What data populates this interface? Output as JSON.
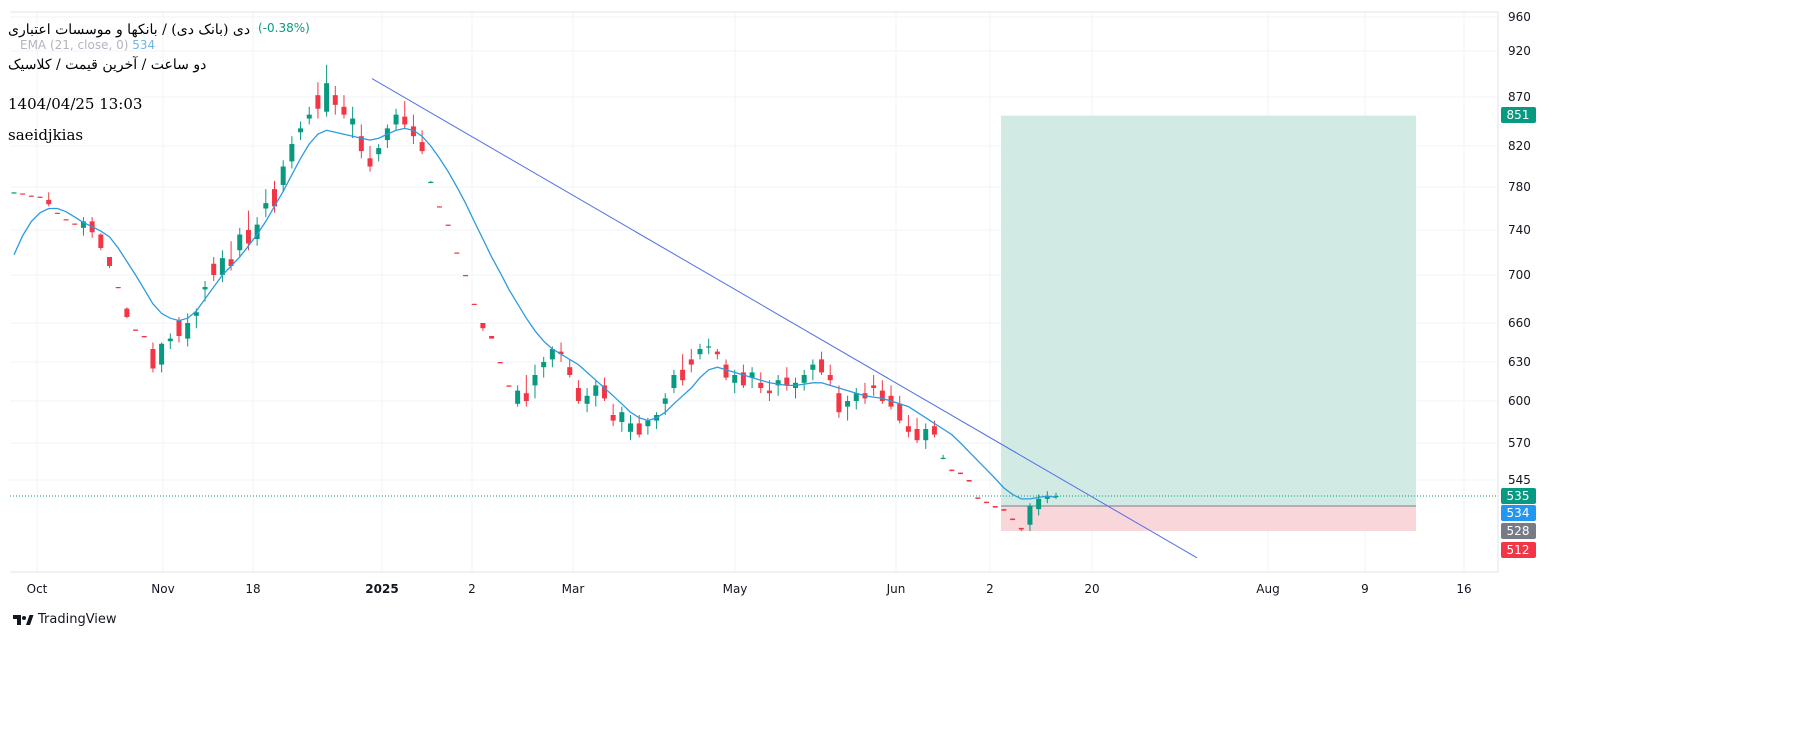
{
  "header": {
    "symbol_title": "دی (بانک دی) / بانکها و موسسات اعتباری",
    "change": "(-0.38%)",
    "ema_label": "EMA (21, close, 0)",
    "ema_value": "534",
    "interval_line": "دو ساعت / آخرین قیمت / کلاسیک",
    "datetime": "1404/04/25 13:03",
    "author": "saeidjkias"
  },
  "brand": {
    "label": "TradingView"
  },
  "colors": {
    "up": "#089981",
    "down": "#f23645",
    "ema": "#2c9be0",
    "trendline": "#4f6fe6",
    "profit_zone": "#cfeae3",
    "stop_zone": "#f9d6d9",
    "grid": "#f0f3fa"
  },
  "chart_data": {
    "type": "candlestick",
    "y_axis": {
      "ticks": [
        960,
        920,
        870,
        820,
        780,
        740,
        700,
        660,
        630,
        600,
        570,
        545
      ],
      "range": [
        490,
        965
      ]
    },
    "x_axis": {
      "labels": [
        {
          "label": "Oct",
          "bold": false
        },
        {
          "label": "Nov",
          "bold": false
        },
        {
          "label": "18",
          "bold": false
        },
        {
          "label": "2025",
          "bold": true
        },
        {
          "label": "2",
          "bold": false
        },
        {
          "label": "Mar",
          "bold": false
        },
        {
          "label": "May",
          "bold": false
        },
        {
          "label": "Jun",
          "bold": false
        },
        {
          "label": "2",
          "bold": false
        },
        {
          "label": "20",
          "bold": false
        },
        {
          "label": "Aug",
          "bold": false
        },
        {
          "label": "9",
          "bold": false
        },
        {
          "label": "16",
          "bold": false
        }
      ]
    },
    "price_labels": [
      {
        "value": 851,
        "label": "851",
        "color": "#089981"
      },
      {
        "value": 535,
        "label": "535",
        "color": "#089981"
      },
      {
        "value": 534,
        "label": "534",
        "color": "#2196f3"
      },
      {
        "value": 528,
        "label": "528",
        "color": "#787b86"
      },
      {
        "value": 512,
        "label": "512",
        "color": "#f23645"
      }
    ],
    "last_price": 535,
    "position": {
      "type": "long",
      "entry": 528,
      "target": 851,
      "stop": 512
    },
    "trendline": {
      "from": {
        "x": "2024-12-29",
        "y": 890
      },
      "to": {
        "x": "2025-07-13",
        "y": 500
      }
    },
    "series": [
      {
        "kind": "ohlc",
        "description": "2-hour candles, approximate values read from chart",
        "points": [
          [
            775,
            775,
            774,
            775
          ],
          [
            774,
            774,
            773,
            773
          ],
          [
            772,
            772,
            771,
            771
          ],
          [
            771,
            771,
            770,
            770
          ],
          [
            768,
            775,
            762,
            764
          ],
          [
            756,
            756,
            755,
            755
          ],
          [
            750,
            750,
            749,
            749
          ],
          [
            746,
            746,
            745,
            745
          ],
          [
            742,
            752,
            735,
            748
          ],
          [
            748,
            752,
            733,
            738
          ],
          [
            736,
            737,
            722,
            724
          ],
          [
            716,
            716,
            706,
            708
          ],
          [
            690,
            690,
            689,
            689
          ],
          [
            672,
            673,
            664,
            665
          ],
          [
            655,
            655,
            654,
            654
          ],
          [
            650,
            650,
            649,
            649
          ],
          [
            640,
            645,
            622,
            625
          ],
          [
            628,
            645,
            622,
            644
          ],
          [
            646,
            652,
            640,
            648
          ],
          [
            662,
            665,
            645,
            650
          ],
          [
            648,
            668,
            642,
            660
          ],
          [
            666,
            672,
            656,
            669
          ],
          [
            688,
            695,
            678,
            690
          ],
          [
            710,
            716,
            695,
            700
          ],
          [
            700,
            722,
            694,
            715
          ],
          [
            714,
            730,
            704,
            708
          ],
          [
            722,
            742,
            716,
            736
          ],
          [
            740,
            758,
            722,
            728
          ],
          [
            732,
            752,
            726,
            745
          ],
          [
            760,
            778,
            752,
            765
          ],
          [
            778,
            786,
            756,
            762
          ],
          [
            782,
            806,
            776,
            800
          ],
          [
            805,
            830,
            798,
            822
          ],
          [
            834,
            845,
            826,
            838
          ],
          [
            848,
            860,
            842,
            852
          ],
          [
            872,
            886,
            848,
            858
          ],
          [
            855,
            905,
            850,
            885
          ],
          [
            872,
            882,
            852,
            862
          ],
          [
            860,
            872,
            848,
            852
          ],
          [
            842,
            860,
            828,
            848
          ],
          [
            830,
            842,
            808,
            815
          ],
          [
            808,
            820,
            795,
            800
          ],
          [
            812,
            822,
            805,
            818
          ],
          [
            826,
            842,
            818,
            838
          ],
          [
            842,
            858,
            836,
            852
          ],
          [
            850,
            866,
            838,
            842
          ],
          [
            840,
            852,
            822,
            830
          ],
          [
            824,
            836,
            812,
            815
          ],
          [
            785,
            786,
            784,
            785
          ],
          [
            762,
            762,
            761,
            761
          ],
          [
            745,
            745,
            744,
            744
          ],
          [
            720,
            720,
            719,
            719
          ],
          [
            700,
            700,
            699,
            699
          ],
          [
            676,
            676,
            675,
            675
          ],
          [
            660,
            660,
            654,
            656
          ],
          [
            650,
            650,
            648,
            648
          ],
          [
            630,
            630,
            629,
            629
          ],
          [
            612,
            612,
            611,
            611
          ],
          [
            598,
            612,
            596,
            608
          ],
          [
            606,
            620,
            596,
            600
          ],
          [
            612,
            628,
            602,
            620
          ],
          [
            626,
            634,
            618,
            630
          ],
          [
            632,
            642,
            626,
            640
          ],
          [
            638,
            645,
            630,
            636
          ],
          [
            626,
            632,
            618,
            620
          ],
          [
            610,
            616,
            598,
            600
          ],
          [
            598,
            610,
            592,
            604
          ],
          [
            604,
            616,
            596,
            612
          ],
          [
            612,
            618,
            600,
            602
          ],
          [
            590,
            598,
            582,
            586
          ],
          [
            585,
            596,
            578,
            592
          ],
          [
            578,
            590,
            572,
            584
          ],
          [
            584,
            590,
            574,
            576
          ],
          [
            582,
            588,
            576,
            586
          ],
          [
            586,
            592,
            580,
            590
          ],
          [
            598,
            606,
            590,
            602
          ],
          [
            610,
            624,
            606,
            620
          ],
          [
            624,
            636,
            612,
            616
          ],
          [
            632,
            640,
            622,
            628
          ],
          [
            636,
            644,
            632,
            640
          ],
          [
            642,
            648,
            636,
            642
          ],
          [
            638,
            640,
            632,
            636
          ],
          [
            628,
            632,
            616,
            618
          ],
          [
            614,
            624,
            606,
            620
          ],
          [
            622,
            628,
            610,
            612
          ],
          [
            618,
            626,
            610,
            622
          ],
          [
            614,
            622,
            606,
            610
          ],
          [
            608,
            616,
            600,
            606
          ],
          [
            612,
            620,
            604,
            616
          ],
          [
            618,
            626,
            608,
            612
          ],
          [
            610,
            618,
            602,
            614
          ],
          [
            614,
            624,
            608,
            620
          ],
          [
            624,
            632,
            616,
            628
          ],
          [
            632,
            638,
            620,
            622
          ],
          [
            620,
            628,
            612,
            616
          ],
          [
            606,
            612,
            588,
            592
          ],
          [
            596,
            604,
            586,
            600
          ],
          [
            600,
            610,
            594,
            606
          ],
          [
            606,
            614,
            598,
            602
          ],
          [
            612,
            620,
            604,
            610
          ],
          [
            608,
            616,
            598,
            600
          ],
          [
            604,
            612,
            594,
            596
          ],
          [
            598,
            604,
            584,
            586
          ],
          [
            582,
            590,
            574,
            578
          ],
          [
            580,
            588,
            570,
            572
          ],
          [
            572,
            584,
            566,
            580
          ],
          [
            582,
            586,
            574,
            576
          ],
          [
            560,
            562,
            559,
            560
          ],
          [
            552,
            552,
            551,
            551
          ],
          [
            550,
            550,
            549,
            549
          ],
          [
            545,
            545,
            544,
            544
          ],
          [
            534,
            534,
            533,
            533
          ],
          [
            531,
            531,
            530,
            530
          ],
          [
            528,
            528,
            527,
            527
          ],
          [
            526,
            526,
            525,
            525
          ],
          [
            520,
            520,
            519,
            519
          ],
          [
            514,
            514,
            512,
            513
          ],
          [
            516,
            530,
            512,
            528
          ],
          [
            526,
            536,
            522,
            533
          ],
          [
            533,
            538,
            530,
            535
          ],
          [
            535,
            537,
            533,
            535
          ]
        ]
      },
      {
        "kind": "ema",
        "name": "EMA (21, close, 0)",
        "points": [
          718,
          735,
          748,
          756,
          760,
          760,
          757,
          752,
          747,
          743,
          739,
          734,
          724,
          712,
          700,
          688,
          676,
          668,
          664,
          662,
          664,
          670,
          680,
          690,
          700,
          708,
          716,
          726,
          736,
          748,
          762,
          776,
          792,
          808,
          822,
          832,
          836,
          834,
          832,
          830,
          828,
          826,
          828,
          832,
          836,
          838,
          836,
          830,
          820,
          808,
          795,
          780,
          765,
          748,
          732,
          716,
          702,
          688,
          676,
          664,
          654,
          646,
          640,
          636,
          632,
          628,
          622,
          616,
          610,
          604,
          598,
          592,
          588,
          586,
          588,
          592,
          598,
          604,
          610,
          618,
          624,
          626,
          624,
          622,
          620,
          618,
          616,
          614,
          613,
          612,
          612,
          613,
          614,
          614,
          612,
          610,
          608,
          606,
          604,
          603,
          602,
          600,
          598,
          596,
          592,
          588,
          584,
          580,
          576,
          570,
          564,
          558,
          552,
          546,
          540,
          536,
          533,
          533,
          534,
          535,
          534
        ]
      }
    ]
  }
}
